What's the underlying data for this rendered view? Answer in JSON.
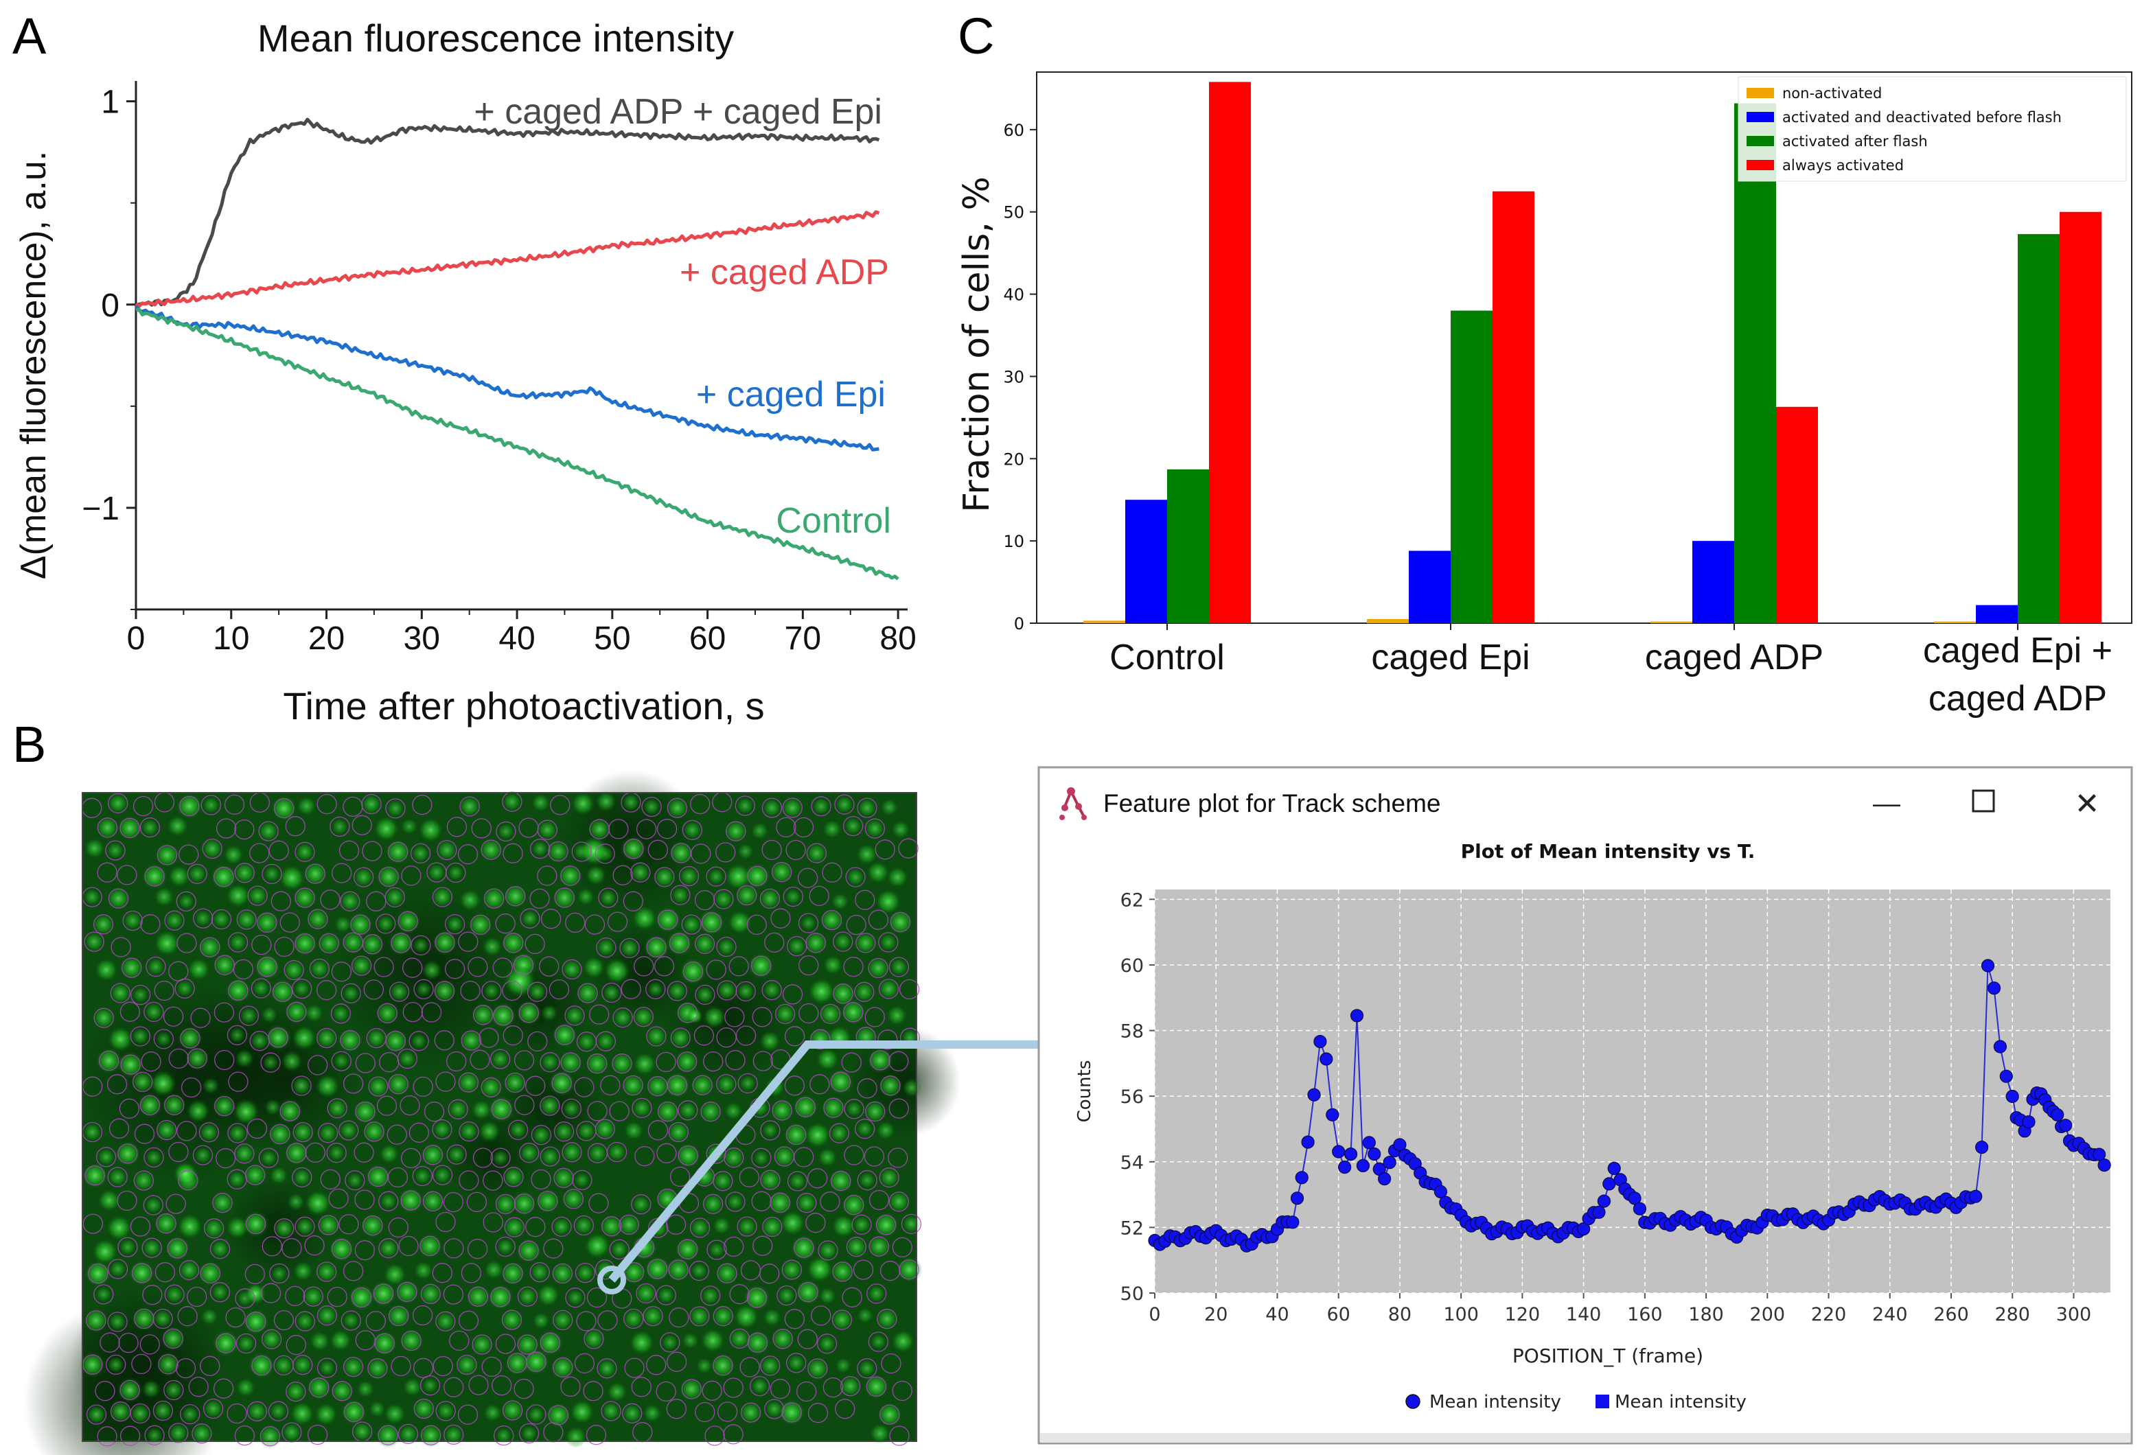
{
  "panels": {
    "A": "A",
    "B": "B",
    "C": "C"
  },
  "chart_data": [
    {
      "id": "A",
      "type": "line",
      "title": "Mean fluorescence intensity",
      "xlabel": "Time after photoactivation, s",
      "ylabel": "Δ(mean fluorescence), a.u.",
      "xlim": [
        0,
        81
      ],
      "ylim": [
        -1.5,
        1.1
      ],
      "xticks": [
        0,
        10,
        20,
        30,
        40,
        50,
        60,
        70,
        80
      ],
      "xtick_labels": [
        "0",
        "10",
        "20",
        "30",
        "40",
        "50",
        "60",
        "70",
        "80"
      ],
      "yticks": [
        -1,
        0,
        1
      ],
      "ytick_labels": [
        "−1",
        "0",
        "1"
      ],
      "series": [
        {
          "name": "+ caged ADP + caged Epi",
          "color": "#4a4a4a",
          "x": [
            0,
            4,
            6,
            8,
            10,
            12,
            14,
            16,
            18,
            20,
            22,
            24,
            26,
            28,
            30,
            35,
            40,
            45,
            50,
            55,
            60,
            65,
            70,
            75,
            78
          ],
          "y": [
            0,
            0.02,
            0.1,
            0.35,
            0.65,
            0.8,
            0.85,
            0.88,
            0.9,
            0.86,
            0.82,
            0.8,
            0.82,
            0.86,
            0.87,
            0.86,
            0.84,
            0.85,
            0.84,
            0.83,
            0.82,
            0.83,
            0.82,
            0.82,
            0.81
          ]
        },
        {
          "name": "+ caged ADP",
          "color": "#e8474d",
          "x": [
            0,
            5,
            10,
            15,
            20,
            25,
            30,
            35,
            40,
            45,
            50,
            55,
            60,
            65,
            70,
            75,
            78
          ],
          "y": [
            0,
            0.02,
            0.05,
            0.09,
            0.12,
            0.15,
            0.17,
            0.2,
            0.22,
            0.25,
            0.29,
            0.31,
            0.34,
            0.37,
            0.4,
            0.43,
            0.45
          ]
        },
        {
          "name": "+ caged Epi",
          "color": "#1f6fcf",
          "x": [
            0,
            3,
            5,
            8,
            10,
            15,
            20,
            25,
            30,
            35,
            38,
            40,
            45,
            48,
            50,
            55,
            60,
            65,
            70,
            75,
            78
          ],
          "y": [
            -0.02,
            -0.06,
            -0.1,
            -0.1,
            -0.1,
            -0.14,
            -0.18,
            -0.25,
            -0.3,
            -0.36,
            -0.42,
            -0.45,
            -0.44,
            -0.42,
            -0.48,
            -0.54,
            -0.6,
            -0.64,
            -0.66,
            -0.69,
            -0.71
          ]
        },
        {
          "name": "Control",
          "color": "#3aa870",
          "x": [
            0,
            5,
            10,
            15,
            20,
            25,
            30,
            35,
            40,
            45,
            50,
            55,
            60,
            65,
            70,
            75,
            80
          ],
          "y": [
            -0.03,
            -0.1,
            -0.18,
            -0.27,
            -0.36,
            -0.44,
            -0.55,
            -0.62,
            -0.7,
            -0.78,
            -0.87,
            -0.97,
            -1.07,
            -1.13,
            -1.2,
            -1.27,
            -1.35
          ]
        }
      ]
    },
    {
      "id": "C",
      "type": "bar",
      "ylabel": "Fraction of cells, %",
      "ylim": [
        0,
        67
      ],
      "yticks": [
        0,
        10,
        20,
        30,
        40,
        50,
        60
      ],
      "ytick_labels": [
        "0",
        "10",
        "20",
        "30",
        "40",
        "50",
        "60"
      ],
      "categories": [
        "Control",
        "caged Epi",
        "caged ADP",
        "caged Epi + caged ADP"
      ],
      "category_lines": [
        [
          "Control"
        ],
        [
          "caged Epi"
        ],
        [
          "caged ADP"
        ],
        [
          "caged Epi +",
          "caged ADP"
        ]
      ],
      "legend_position": "top-right",
      "series": [
        {
          "name": "non-activated",
          "color": "#f0a500",
          "values": [
            0.3,
            0.5,
            0.2,
            0.2
          ]
        },
        {
          "name": "activated and deactivated before flash",
          "color": "#0000ff",
          "values": [
            15,
            8.8,
            10,
            2.2
          ]
        },
        {
          "name": "activated after flash",
          "color": "#007f00",
          "values": [
            18.7,
            38,
            63.2,
            47.3
          ]
        },
        {
          "name": "always activated",
          "color": "#ff0000",
          "values": [
            65.8,
            52.5,
            26.3,
            50
          ]
        }
      ]
    },
    {
      "id": "B-plot",
      "type": "scatter",
      "title": "Plot of Mean intensity vs T.",
      "xlabel": "POSITION_T (frame)",
      "ylabel": "Counts",
      "xlim": [
        0,
        312
      ],
      "ylim": [
        50,
        62.3
      ],
      "xticks": [
        0,
        20,
        40,
        60,
        80,
        100,
        120,
        140,
        160,
        180,
        200,
        220,
        240,
        260,
        280,
        300
      ],
      "xtick_labels": [
        "0",
        "20",
        "40",
        "60",
        "80",
        "100",
        "120",
        "140",
        "160",
        "180",
        "200",
        "220",
        "240",
        "260",
        "280",
        "300"
      ],
      "yticks": [
        50,
        52,
        54,
        56,
        58,
        60,
        62
      ],
      "ytick_labels": [
        "50",
        "52",
        "54",
        "56",
        "58",
        "60",
        "62"
      ],
      "series": [
        {
          "name": "Mean intensity",
          "color": "#1010ee",
          "x": [
            0,
            10,
            20,
            30,
            40,
            45,
            48,
            50,
            52,
            54,
            56,
            58,
            60,
            62,
            64,
            66,
            68,
            70,
            75,
            80,
            85,
            90,
            95,
            100,
            110,
            120,
            130,
            140,
            145,
            150,
            152,
            155,
            160,
            170,
            180,
            190,
            200,
            210,
            220,
            230,
            235,
            240,
            250,
            260,
            268,
            270,
            272,
            274,
            276,
            278,
            280,
            284,
            288,
            292,
            296,
            300,
            305,
            310
          ],
          "y": [
            51.6,
            51.8,
            51.7,
            51.6,
            51.9,
            52.2,
            53.5,
            54.5,
            56.0,
            57.8,
            57.2,
            55.5,
            54.5,
            53.9,
            54.2,
            58.5,
            53.8,
            54.4,
            53.5,
            54.6,
            53.9,
            53.4,
            52.8,
            52.2,
            52.0,
            51.9,
            51.8,
            52.1,
            52.5,
            53.6,
            53.4,
            53.0,
            52.3,
            52.2,
            52.1,
            51.9,
            52.2,
            52.3,
            52.3,
            52.6,
            52.8,
            52.9,
            52.6,
            52.7,
            53.0,
            54.6,
            60.0,
            59.2,
            57.5,
            56.5,
            55.8,
            54.9,
            56.2,
            55.7,
            55.2,
            54.5,
            54.3,
            53.9
          ]
        }
      ],
      "legend": [
        "Mean intensity",
        "Mean intensity"
      ]
    }
  ],
  "window": {
    "title": "Feature plot for Track scheme",
    "minimize": "—",
    "maximize": "☐",
    "close": "✕"
  }
}
